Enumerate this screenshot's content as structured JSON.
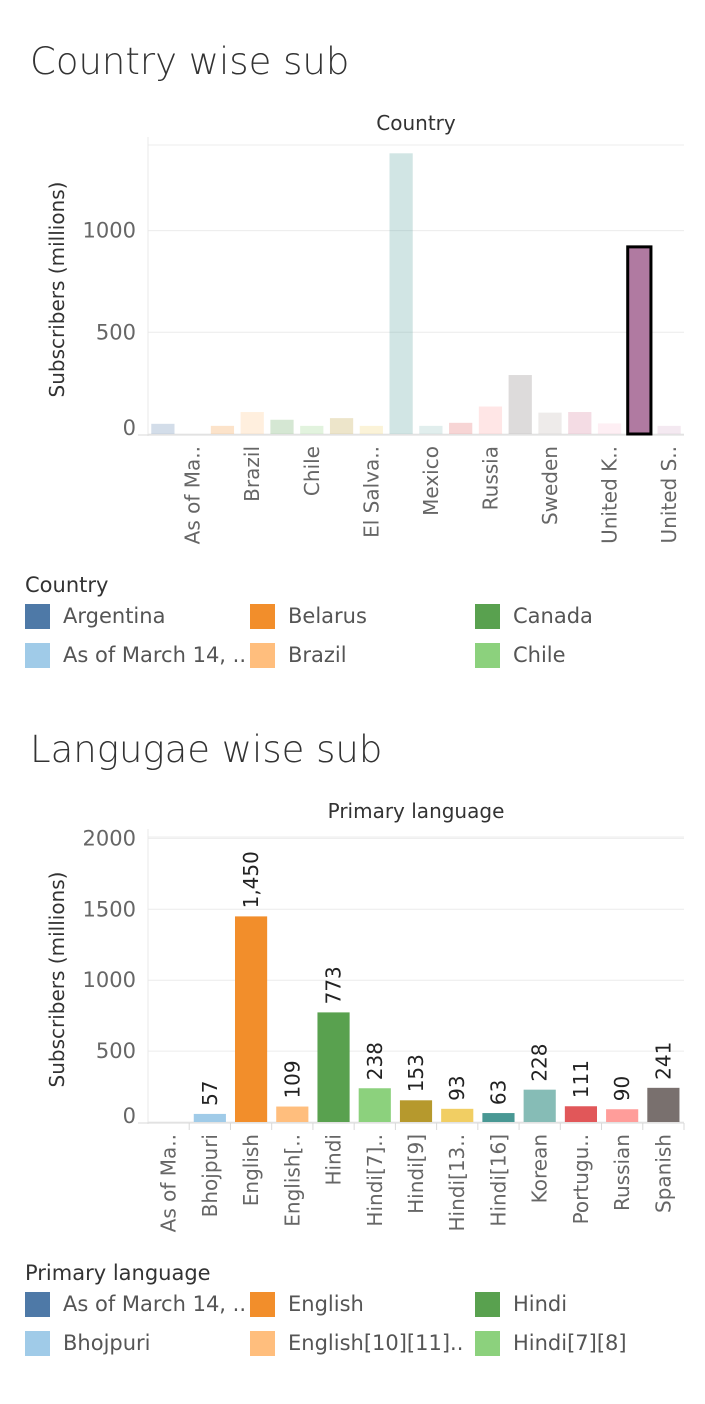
{
  "country_section": {
    "title": "Country wise sub"
  },
  "language_section": {
    "title": "Langugae wise sub"
  },
  "country_legend": {
    "title": "Country",
    "items": [
      {
        "label": "Argentina",
        "color": "#4e79a7"
      },
      {
        "label": "Belarus",
        "color": "#f28e2b"
      },
      {
        "label": "Canada",
        "color": "#59a14f"
      },
      {
        "label": "As of March 14, ..",
        "color": "#a0cbe8"
      },
      {
        "label": "Brazil",
        "color": "#ffbe7d"
      },
      {
        "label": "Chile",
        "color": "#8cd17d"
      }
    ]
  },
  "language_legend": {
    "title": "Primary language",
    "items": [
      {
        "label": "As of March 14, ..",
        "color": "#4e79a7"
      },
      {
        "label": "English",
        "color": "#f28e2b"
      },
      {
        "label": "Hindi",
        "color": "#59a14f"
      },
      {
        "label": "Bhojpuri",
        "color": "#a0cbe8"
      },
      {
        "label": "English[10][11]..",
        "color": "#ffbe7d"
      },
      {
        "label": "Hindi[7][8]",
        "color": "#8cd17d"
      }
    ]
  },
  "chart_data": [
    {
      "type": "bar",
      "header": "Country",
      "ylabel": "Subscribers (millions)",
      "yticks": [
        0,
        500,
        1000
      ],
      "ylim": [
        0,
        1400
      ],
      "x_tick_labels": [
        "As of Ma..",
        "Brazil",
        "Chile",
        "El Salva..",
        "Mexico",
        "Russia",
        "Sweden",
        "United K..",
        "United S.."
      ],
      "categories": [
        {
          "value": 50,
          "color": "#4e79a7",
          "opacity": 0.25
        },
        {
          "value": 0,
          "color": "#a0cbe8",
          "opacity": 0.25
        },
        {
          "value": 40,
          "color": "#f28e2b",
          "opacity": 0.25
        },
        {
          "value": 108,
          "color": "#ffbe7d",
          "opacity": 0.25
        },
        {
          "value": 70,
          "color": "#59a14f",
          "opacity": 0.25
        },
        {
          "value": 40,
          "color": "#8cd17d",
          "opacity": 0.25
        },
        {
          "value": 78,
          "color": "#b6992d",
          "opacity": 0.25
        },
        {
          "value": 40,
          "color": "#f1ce63",
          "opacity": 0.25
        },
        {
          "value": 1380,
          "color": "#499894",
          "opacity": 0.25
        },
        {
          "value": 40,
          "color": "#86bcb6",
          "opacity": 0.25
        },
        {
          "value": 55,
          "color": "#e15759",
          "opacity": 0.25
        },
        {
          "value": 135,
          "color": "#ff9d9a",
          "opacity": 0.25
        },
        {
          "value": 290,
          "color": "#79706e",
          "opacity": 0.25
        },
        {
          "value": 105,
          "color": "#bab0ac",
          "opacity": 0.25
        },
        {
          "value": 108,
          "color": "#d37295",
          "opacity": 0.25
        },
        {
          "value": 52,
          "color": "#fabfd2",
          "opacity": 0.25
        },
        {
          "value": 920,
          "color": "#b07aa1",
          "opacity": 1,
          "highlight": true
        },
        {
          "value": 40,
          "color": "#d4a6c8",
          "opacity": 0.25
        }
      ]
    },
    {
      "type": "bar",
      "header": "Primary language",
      "ylabel": "Subscribers (millions)",
      "yticks": [
        0,
        500,
        1000,
        1500,
        2000
      ],
      "ylim": [
        0,
        2000
      ],
      "categories": [
        {
          "label": "As of Ma..",
          "value": 0,
          "data_label": "",
          "color": "#4e79a7"
        },
        {
          "label": "Bhojpuri",
          "value": 57,
          "data_label": "57",
          "color": "#a0cbe8"
        },
        {
          "label": "English",
          "value": 1450,
          "data_label": "1,450",
          "color": "#f28e2b"
        },
        {
          "label": "English[..",
          "value": 109,
          "data_label": "109",
          "color": "#ffbe7d"
        },
        {
          "label": "Hindi",
          "value": 773,
          "data_label": "773",
          "color": "#59a14f"
        },
        {
          "label": "Hindi[7]..",
          "value": 238,
          "data_label": "238",
          "color": "#8cd17d"
        },
        {
          "label": "Hindi[9]",
          "value": 153,
          "data_label": "153",
          "color": "#b6992d"
        },
        {
          "label": "Hindi[13..",
          "value": 93,
          "data_label": "93",
          "color": "#f1ce63"
        },
        {
          "label": "Hindi[16]",
          "value": 63,
          "data_label": "63",
          "color": "#499894"
        },
        {
          "label": "Korean",
          "value": 228,
          "data_label": "228",
          "color": "#86bcb6"
        },
        {
          "label": "Portugu..",
          "value": 111,
          "data_label": "111",
          "color": "#e15759"
        },
        {
          "label": "Russian",
          "value": 90,
          "data_label": "90",
          "color": "#ff9d9a"
        },
        {
          "label": "Spanish",
          "value": 241,
          "data_label": "241",
          "color": "#79706e"
        }
      ]
    }
  ]
}
